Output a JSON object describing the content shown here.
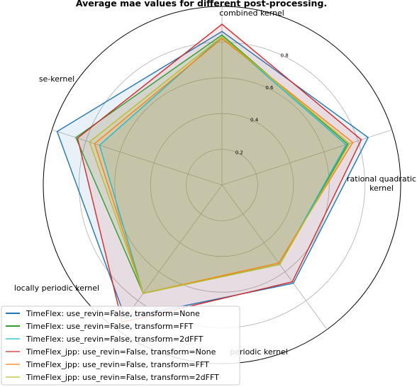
{
  "chart_data": {
    "type": "radar",
    "title": "Average mae values for different post-processing.",
    "axes": [
      "combined kernel",
      "rational quadratic\nkernel",
      "periodic kernel",
      "locally periodic kernel",
      "se-kernel"
    ],
    "rlim": [
      0,
      1.0
    ],
    "rticks": [
      0.2,
      0.4,
      0.6,
      0.8
    ],
    "rtick_labels": [
      "0.2",
      "0.4",
      "0.6",
      "0.8"
    ],
    "grid": true,
    "legend_position": "lower-left",
    "series": [
      {
        "name": "TimeFlex: use_revin=False, transform=None",
        "color": "#1f77b4",
        "values": [
          0.86,
          0.86,
          0.68,
          0.92,
          0.97
        ]
      },
      {
        "name": "TimeFlex: use_revin=False, transform=FFT",
        "color": "#2ca02c",
        "values": [
          0.84,
          0.74,
          0.55,
          0.75,
          0.86
        ]
      },
      {
        "name": "TimeFlex: use_revin=False, transform=2dFFT",
        "color": "#17becf",
        "values": [
          0.83,
          0.73,
          0.55,
          0.75,
          0.72
        ]
      },
      {
        "name": "TimeFlex_jpp: use_revin=False, transform=None",
        "color": "#d62728",
        "values": [
          0.9,
          0.82,
          0.67,
          0.95,
          0.85
        ]
      },
      {
        "name": "TimeFlex_jpp: use_revin=False, transform=FFT",
        "color": "#ff7f0e",
        "values": [
          0.82,
          0.77,
          0.54,
          0.75,
          0.75
        ]
      },
      {
        "name": "TimeFlex_jpp: use_revin=False, transform=2dFFT",
        "color": "#bcbd22",
        "values": [
          0.83,
          0.75,
          0.55,
          0.75,
          0.78
        ]
      }
    ]
  }
}
